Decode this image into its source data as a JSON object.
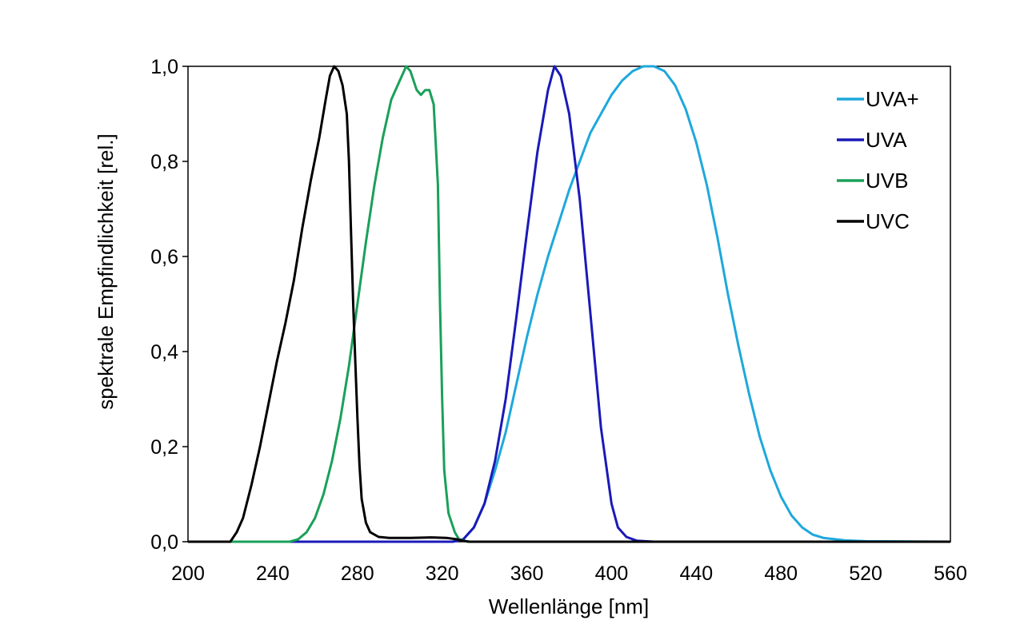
{
  "chart_data": {
    "type": "line",
    "title": "",
    "xlabel": "Wellenlänge [nm]",
    "ylabel": "spektrale Empfindlichkeit [rel.]",
    "xlim": [
      200,
      560
    ],
    "ylim": [
      0,
      1
    ],
    "xticks": [
      "200",
      "240",
      "280",
      "320",
      "360",
      "400",
      "440",
      "480",
      "520",
      "560"
    ],
    "yticks": [
      "0,0",
      "0,2",
      "0,4",
      "0,6",
      "0,8",
      "1,0"
    ],
    "grid": false,
    "legend_position": "top-right",
    "series": [
      {
        "name": "UVA+",
        "color": "#1ea8dc",
        "points": [
          [
            200,
            0
          ],
          [
            325,
            0
          ],
          [
            330,
            0.005
          ],
          [
            335,
            0.03
          ],
          [
            340,
            0.08
          ],
          [
            345,
            0.15
          ],
          [
            350,
            0.23
          ],
          [
            355,
            0.33
          ],
          [
            360,
            0.43
          ],
          [
            365,
            0.52
          ],
          [
            370,
            0.6
          ],
          [
            375,
            0.67
          ],
          [
            380,
            0.74
          ],
          [
            385,
            0.8
          ],
          [
            390,
            0.86
          ],
          [
            395,
            0.9
          ],
          [
            400,
            0.94
          ],
          [
            405,
            0.97
          ],
          [
            410,
            0.99
          ],
          [
            415,
            1.0
          ],
          [
            420,
            1.0
          ],
          [
            425,
            0.99
          ],
          [
            430,
            0.96
          ],
          [
            435,
            0.91
          ],
          [
            440,
            0.84
          ],
          [
            445,
            0.75
          ],
          [
            450,
            0.64
          ],
          [
            455,
            0.52
          ],
          [
            460,
            0.41
          ],
          [
            465,
            0.31
          ],
          [
            470,
            0.22
          ],
          [
            475,
            0.15
          ],
          [
            480,
            0.095
          ],
          [
            485,
            0.055
          ],
          [
            490,
            0.03
          ],
          [
            495,
            0.015
          ],
          [
            500,
            0.008
          ],
          [
            510,
            0.003
          ],
          [
            520,
            0.001
          ],
          [
            560,
            0
          ]
        ]
      },
      {
        "name": "UVA",
        "color": "#1a1ab8",
        "points": [
          [
            200,
            0
          ],
          [
            325,
            0
          ],
          [
            330,
            0.005
          ],
          [
            335,
            0.03
          ],
          [
            340,
            0.08
          ],
          [
            345,
            0.17
          ],
          [
            350,
            0.3
          ],
          [
            355,
            0.47
          ],
          [
            360,
            0.65
          ],
          [
            365,
            0.82
          ],
          [
            370,
            0.95
          ],
          [
            373,
            1.0
          ],
          [
            376,
            0.98
          ],
          [
            380,
            0.9
          ],
          [
            385,
            0.72
          ],
          [
            390,
            0.48
          ],
          [
            395,
            0.24
          ],
          [
            400,
            0.08
          ],
          [
            403,
            0.03
          ],
          [
            407,
            0.01
          ],
          [
            412,
            0.002
          ],
          [
            420,
            0
          ],
          [
            560,
            0
          ]
        ]
      },
      {
        "name": "UVB",
        "color": "#1aa05a",
        "points": [
          [
            200,
            0
          ],
          [
            248,
            0
          ],
          [
            252,
            0.005
          ],
          [
            256,
            0.02
          ],
          [
            260,
            0.05
          ],
          [
            264,
            0.1
          ],
          [
            268,
            0.17
          ],
          [
            272,
            0.26
          ],
          [
            276,
            0.37
          ],
          [
            280,
            0.5
          ],
          [
            284,
            0.63
          ],
          [
            288,
            0.75
          ],
          [
            292,
            0.85
          ],
          [
            296,
            0.93
          ],
          [
            300,
            0.97
          ],
          [
            303,
            1.0
          ],
          [
            305,
            0.99
          ],
          [
            308,
            0.95
          ],
          [
            310,
            0.94
          ],
          [
            312,
            0.95
          ],
          [
            314,
            0.95
          ],
          [
            316,
            0.92
          ],
          [
            318,
            0.75
          ],
          [
            319,
            0.5
          ],
          [
            320,
            0.3
          ],
          [
            321,
            0.15
          ],
          [
            323,
            0.06
          ],
          [
            326,
            0.02
          ],
          [
            328,
            0.005
          ],
          [
            332,
            0
          ],
          [
            560,
            0
          ]
        ]
      },
      {
        "name": "UVC",
        "color": "#000000",
        "points": [
          [
            200,
            0
          ],
          [
            220,
            0
          ],
          [
            223,
            0.02
          ],
          [
            226,
            0.05
          ],
          [
            230,
            0.12
          ],
          [
            234,
            0.2
          ],
          [
            238,
            0.29
          ],
          [
            242,
            0.38
          ],
          [
            246,
            0.46
          ],
          [
            250,
            0.55
          ],
          [
            254,
            0.66
          ],
          [
            258,
            0.76
          ],
          [
            262,
            0.85
          ],
          [
            265,
            0.93
          ],
          [
            267,
            0.98
          ],
          [
            269,
            1.0
          ],
          [
            271,
            0.99
          ],
          [
            273,
            0.96
          ],
          [
            275,
            0.9
          ],
          [
            276,
            0.8
          ],
          [
            277,
            0.65
          ],
          [
            278,
            0.5
          ],
          [
            279,
            0.38
          ],
          [
            280,
            0.26
          ],
          [
            281,
            0.16
          ],
          [
            282,
            0.09
          ],
          [
            284,
            0.04
          ],
          [
            286,
            0.02
          ],
          [
            290,
            0.01
          ],
          [
            295,
            0.008
          ],
          [
            305,
            0.008
          ],
          [
            315,
            0.009
          ],
          [
            322,
            0.008
          ],
          [
            327,
            0.005
          ],
          [
            330,
            0.002
          ],
          [
            333,
            0
          ],
          [
            560,
            0
          ]
        ]
      }
    ]
  }
}
